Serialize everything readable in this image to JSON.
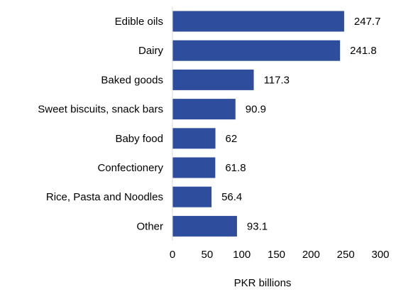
{
  "chart_data": {
    "type": "bar",
    "orientation": "horizontal",
    "categories": [
      "Edible oils",
      "Dairy",
      "Baked goods",
      "Sweet biscuits, snack bars",
      "Baby food",
      "Confectionery",
      "Rice, Pasta and Noodles",
      "Other"
    ],
    "values": [
      247.7,
      241.8,
      117.3,
      90.9,
      62,
      61.8,
      56.4,
      93.1
    ],
    "value_labels": [
      "247.7",
      "241.8",
      "117.3",
      "90.9",
      "62",
      "61.8",
      "56.4",
      "93.1"
    ],
    "xlabel": "PKR billions",
    "xlim": [
      0,
      300
    ],
    "xticks": [
      0,
      50,
      100,
      150,
      200,
      250,
      300
    ],
    "grid": false,
    "legend": "none",
    "bar_color": "#2E4D9C"
  }
}
